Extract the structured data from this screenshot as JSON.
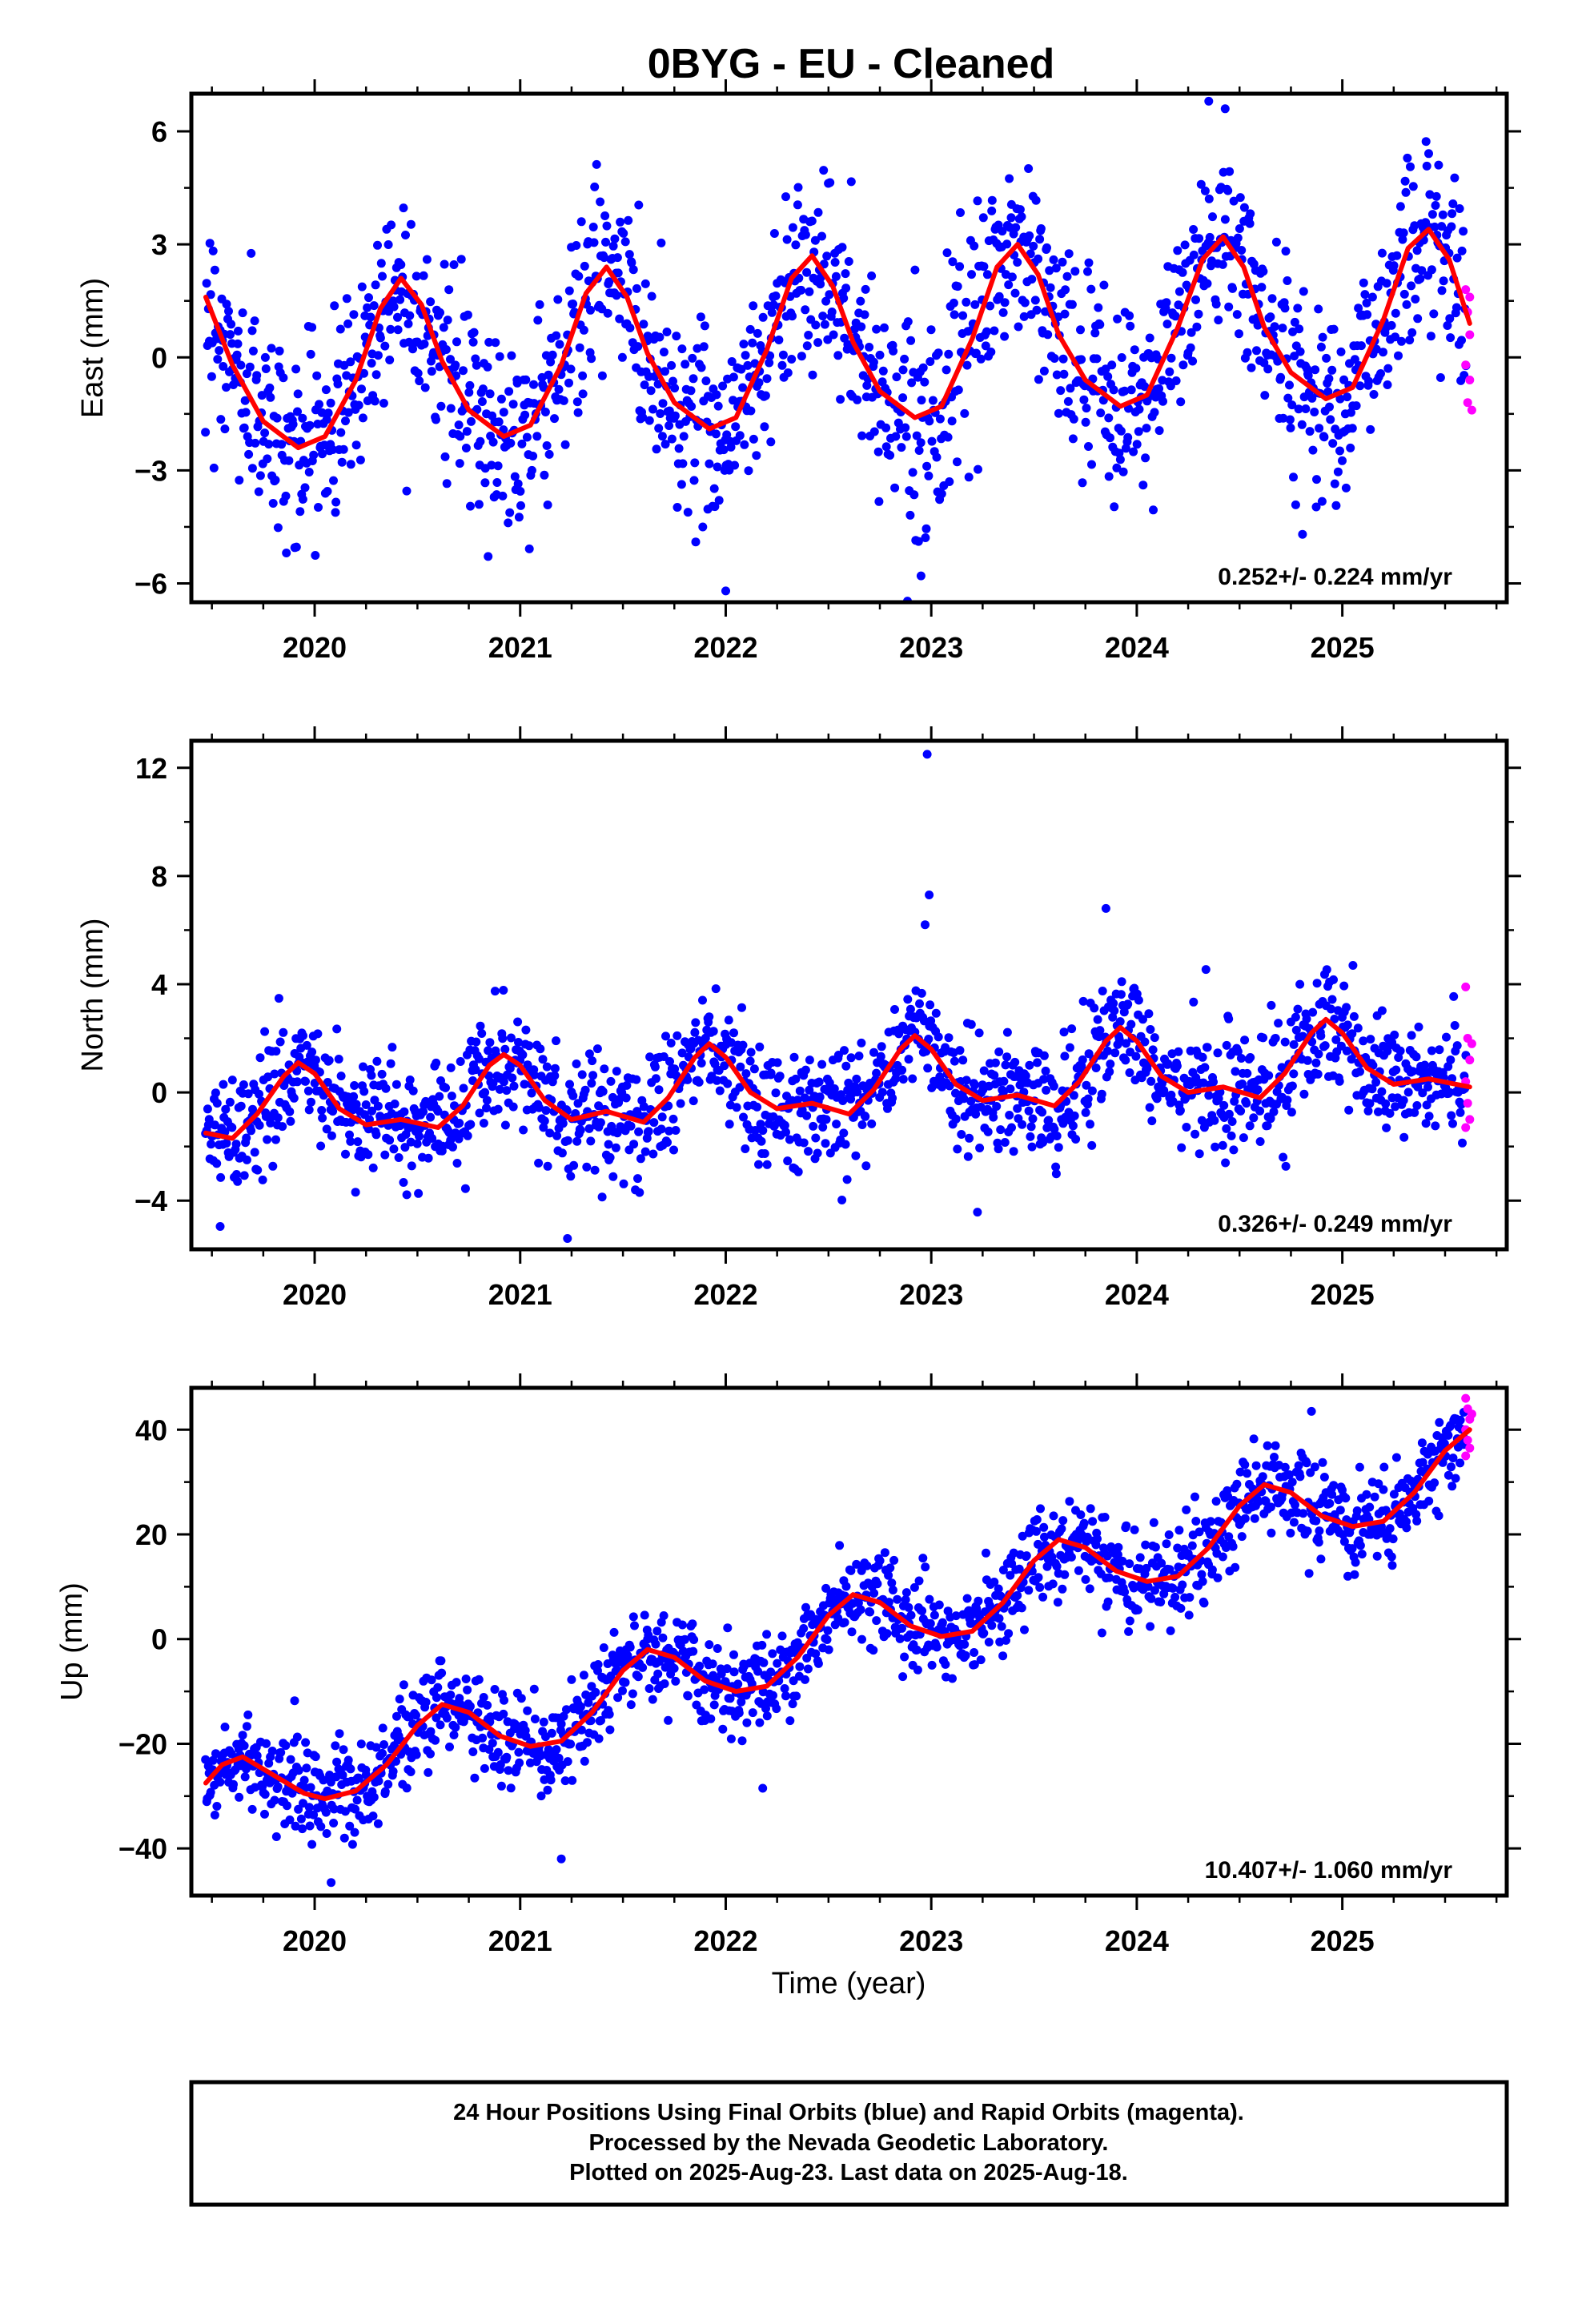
{
  "title": "0BYG  - EU - Cleaned",
  "xlabel": "Time (year)",
  "footer": {
    "lines": [
      "24 Hour Positions Using Final Orbits (blue) and Rapid Orbits (magenta).",
      "Processed by the Nevada Geodetic Laboratory.",
      "Plotted on 2025-Aug-23. Last data on 2025-Aug-18."
    ]
  },
  "colors": {
    "final": "#0000ff",
    "rapid": "#ff00ff",
    "model": "#ff0000",
    "frame": "#000000"
  },
  "chart_data": [
    {
      "type": "scatter",
      "component": "East",
      "ylabel": "East (mm)",
      "rate_label": "0.252+/- 0.224 mm/yr",
      "xlim": [
        2019.4,
        2025.8
      ],
      "ylim": [
        -6.5,
        7.0
      ],
      "xticks": [
        2020,
        2021,
        2022,
        2023,
        2024,
        2025
      ],
      "yticks": [
        -6,
        -3,
        0,
        3,
        6
      ],
      "model": {
        "type": "line",
        "points": [
          [
            2019.47,
            1.6
          ],
          [
            2019.6,
            -0.2
          ],
          [
            2019.75,
            -1.7
          ],
          [
            2019.92,
            -2.4
          ],
          [
            2020.05,
            -2.1
          ],
          [
            2020.2,
            -0.6
          ],
          [
            2020.32,
            1.3
          ],
          [
            2020.42,
            2.1
          ],
          [
            2020.52,
            1.4
          ],
          [
            2020.62,
            -0.1
          ],
          [
            2020.75,
            -1.4
          ],
          [
            2020.92,
            -2.1
          ],
          [
            2021.05,
            -1.8
          ],
          [
            2021.2,
            -0.2
          ],
          [
            2021.32,
            1.7
          ],
          [
            2021.42,
            2.4
          ],
          [
            2021.52,
            1.6
          ],
          [
            2021.62,
            0.1
          ],
          [
            2021.75,
            -1.2
          ],
          [
            2021.92,
            -1.9
          ],
          [
            2022.05,
            -1.6
          ],
          [
            2022.2,
            0.2
          ],
          [
            2022.32,
            2.1
          ],
          [
            2022.42,
            2.7
          ],
          [
            2022.52,
            1.9
          ],
          [
            2022.62,
            0.4
          ],
          [
            2022.75,
            -0.9
          ],
          [
            2022.92,
            -1.6
          ],
          [
            2023.05,
            -1.3
          ],
          [
            2023.2,
            0.5
          ],
          [
            2023.32,
            2.4
          ],
          [
            2023.42,
            3.0
          ],
          [
            2023.52,
            2.2
          ],
          [
            2023.62,
            0.6
          ],
          [
            2023.75,
            -0.6
          ],
          [
            2023.92,
            -1.3
          ],
          [
            2024.05,
            -1.0
          ],
          [
            2024.2,
            0.8
          ],
          [
            2024.32,
            2.6
          ],
          [
            2024.42,
            3.2
          ],
          [
            2024.52,
            2.4
          ],
          [
            2024.62,
            0.8
          ],
          [
            2024.75,
            -0.4
          ],
          [
            2024.92,
            -1.1
          ],
          [
            2025.05,
            -0.8
          ],
          [
            2025.2,
            1.0
          ],
          [
            2025.32,
            2.9
          ],
          [
            2025.42,
            3.4
          ],
          [
            2025.52,
            2.6
          ],
          [
            2025.62,
            0.9
          ]
        ]
      },
      "final_scatter": {
        "start": 2019.47,
        "end": 2025.6,
        "count": 1500,
        "noise": 1.3,
        "outliers": [
          [
            2022.0,
            -6.2
          ],
          [
            2022.95,
            -5.8
          ],
          [
            2024.35,
            6.8
          ],
          [
            2024.43,
            6.6
          ]
        ]
      },
      "rapid_points": [
        [
          2025.6,
          1.8
        ],
        [
          2025.61,
          1.2
        ],
        [
          2025.62,
          0.6
        ],
        [
          2025.6,
          -0.2
        ],
        [
          2025.62,
          -0.6
        ],
        [
          2025.61,
          -1.2
        ],
        [
          2025.63,
          -1.4
        ],
        [
          2025.62,
          1.6
        ]
      ]
    },
    {
      "type": "scatter",
      "component": "North",
      "ylabel": "North (mm)",
      "rate_label": "0.326+/- 0.249 mm/yr",
      "xlim": [
        2019.4,
        2025.8
      ],
      "ylim": [
        -5.8,
        13.0
      ],
      "xticks": [
        2020,
        2021,
        2022,
        2023,
        2024,
        2025
      ],
      "yticks": [
        -4,
        0,
        4,
        8,
        12
      ],
      "model": {
        "type": "line",
        "points": [
          [
            2019.47,
            -1.5
          ],
          [
            2019.6,
            -1.7
          ],
          [
            2019.72,
            -0.8
          ],
          [
            2019.85,
            0.6
          ],
          [
            2019.92,
            1.1
          ],
          [
            2020.0,
            0.7
          ],
          [
            2020.12,
            -0.6
          ],
          [
            2020.25,
            -1.2
          ],
          [
            2020.42,
            -1.0
          ],
          [
            2020.6,
            -1.3
          ],
          [
            2020.72,
            -0.5
          ],
          [
            2020.85,
            1.0
          ],
          [
            2020.92,
            1.4
          ],
          [
            2021.0,
            1.0
          ],
          [
            2021.12,
            -0.3
          ],
          [
            2021.25,
            -1.0
          ],
          [
            2021.42,
            -0.7
          ],
          [
            2021.6,
            -1.1
          ],
          [
            2021.72,
            -0.2
          ],
          [
            2021.85,
            1.3
          ],
          [
            2021.92,
            1.8
          ],
          [
            2022.0,
            1.3
          ],
          [
            2022.12,
            0.0
          ],
          [
            2022.25,
            -0.6
          ],
          [
            2022.42,
            -0.4
          ],
          [
            2022.6,
            -0.8
          ],
          [
            2022.72,
            0.1
          ],
          [
            2022.85,
            1.6
          ],
          [
            2022.92,
            2.1
          ],
          [
            2023.0,
            1.6
          ],
          [
            2023.12,
            0.3
          ],
          [
            2023.25,
            -0.3
          ],
          [
            2023.42,
            -0.1
          ],
          [
            2023.6,
            -0.5
          ],
          [
            2023.72,
            0.4
          ],
          [
            2023.85,
            1.9
          ],
          [
            2023.92,
            2.4
          ],
          [
            2024.0,
            1.9
          ],
          [
            2024.12,
            0.6
          ],
          [
            2024.25,
            0.0
          ],
          [
            2024.42,
            0.2
          ],
          [
            2024.6,
            -0.2
          ],
          [
            2024.72,
            0.7
          ],
          [
            2024.85,
            2.2
          ],
          [
            2024.92,
            2.7
          ],
          [
            2025.0,
            2.2
          ],
          [
            2025.12,
            0.9
          ],
          [
            2025.25,
            0.3
          ],
          [
            2025.42,
            0.5
          ],
          [
            2025.62,
            0.2
          ]
        ]
      },
      "final_scatter": {
        "start": 2019.47,
        "end": 2025.6,
        "count": 1500,
        "noise": 1.1,
        "outliers": [
          [
            2022.98,
            12.5
          ],
          [
            2022.99,
            7.3
          ],
          [
            2022.97,
            6.2
          ],
          [
            2023.85,
            6.8
          ],
          [
            2021.23,
            -5.4
          ]
        ]
      },
      "rapid_points": [
        [
          2025.6,
          3.9
        ],
        [
          2025.61,
          2.0
        ],
        [
          2025.62,
          1.2
        ],
        [
          2025.6,
          0.4
        ],
        [
          2025.61,
          -0.4
        ],
        [
          2025.62,
          -1.0
        ],
        [
          2025.6,
          -1.3
        ],
        [
          2025.63,
          1.8
        ]
      ]
    },
    {
      "type": "scatter",
      "component": "Up",
      "ylabel": "Up (mm)",
      "rate_label": "10.407+/- 1.060 mm/yr",
      "xlim": [
        2019.4,
        2025.8
      ],
      "ylim": [
        -49,
        48
      ],
      "xticks": [
        2020,
        2021,
        2022,
        2023,
        2024,
        2025
      ],
      "yticks": [
        -40,
        -20,
        0,
        20,
        40
      ],
      "model": {
        "type": "line",
        "points": [
          [
            2019.47,
            -27.5
          ],
          [
            2019.55,
            -24.0
          ],
          [
            2019.65,
            -22.5
          ],
          [
            2019.8,
            -26.0
          ],
          [
            2019.95,
            -29.5
          ],
          [
            2020.05,
            -30.5
          ],
          [
            2020.2,
            -29.0
          ],
          [
            2020.35,
            -24.0
          ],
          [
            2020.5,
            -16.5
          ],
          [
            2020.62,
            -12.5
          ],
          [
            2020.75,
            -14.0
          ],
          [
            2020.9,
            -18.5
          ],
          [
            2021.05,
            -20.5
          ],
          [
            2021.2,
            -19.5
          ],
          [
            2021.35,
            -14.0
          ],
          [
            2021.5,
            -6.0
          ],
          [
            2021.62,
            -2.0
          ],
          [
            2021.75,
            -3.5
          ],
          [
            2021.9,
            -8.0
          ],
          [
            2022.05,
            -10.0
          ],
          [
            2022.2,
            -9.0
          ],
          [
            2022.35,
            -3.5
          ],
          [
            2022.5,
            4.5
          ],
          [
            2022.62,
            8.5
          ],
          [
            2022.75,
            7.0
          ],
          [
            2022.9,
            2.5
          ],
          [
            2023.05,
            0.5
          ],
          [
            2023.2,
            1.5
          ],
          [
            2023.35,
            7.0
          ],
          [
            2023.5,
            15.0
          ],
          [
            2023.62,
            19.0
          ],
          [
            2023.75,
            17.5
          ],
          [
            2023.9,
            13.0
          ],
          [
            2024.05,
            11.0
          ],
          [
            2024.2,
            12.0
          ],
          [
            2024.35,
            17.5
          ],
          [
            2024.5,
            25.5
          ],
          [
            2024.62,
            29.5
          ],
          [
            2024.75,
            28.0
          ],
          [
            2024.9,
            23.5
          ],
          [
            2025.05,
            21.5
          ],
          [
            2025.2,
            22.5
          ],
          [
            2025.35,
            28.0
          ],
          [
            2025.5,
            36.0
          ],
          [
            2025.62,
            40.0
          ]
        ]
      },
      "final_scatter": {
        "start": 2019.47,
        "end": 2025.6,
        "count": 1500,
        "noise": 4.5,
        "outliers": [
          [
            2020.08,
            -46.5
          ],
          [
            2021.2,
            -42.0
          ],
          [
            2024.85,
            43.5
          ],
          [
            2022.18,
            -28.5
          ]
        ]
      },
      "rapid_points": [
        [
          2025.6,
          46.0
        ],
        [
          2025.61,
          44.0
        ],
        [
          2025.62,
          42.0
        ],
        [
          2025.6,
          40.0
        ],
        [
          2025.61,
          38.0
        ],
        [
          2025.62,
          36.5
        ],
        [
          2025.6,
          35.0
        ],
        [
          2025.63,
          43.0
        ]
      ]
    }
  ]
}
